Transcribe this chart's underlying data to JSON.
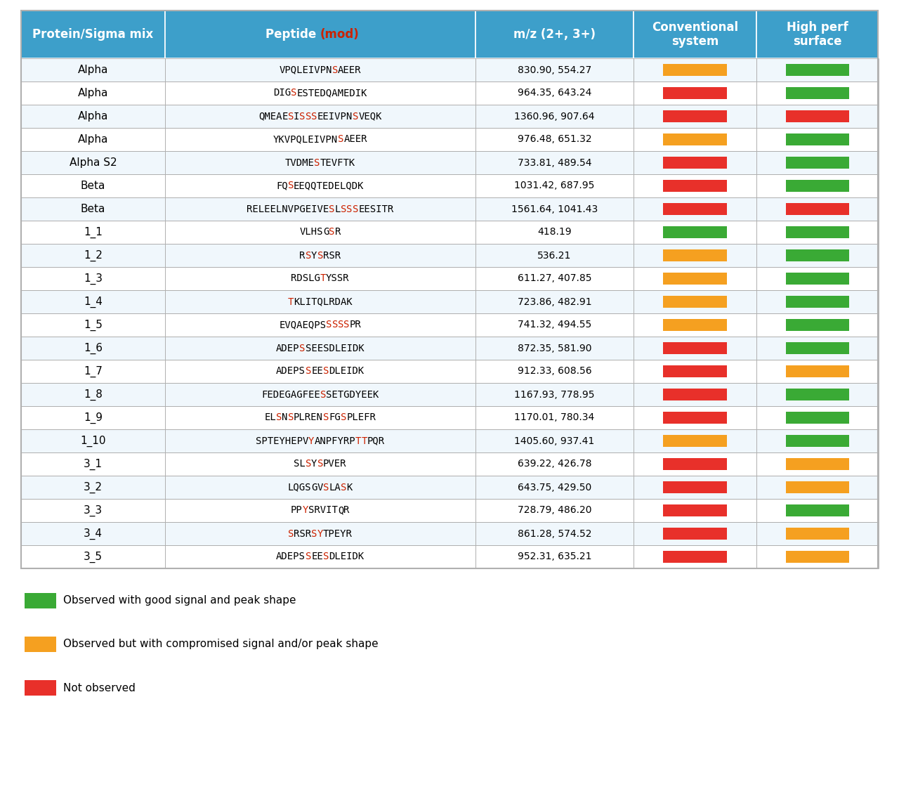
{
  "header": [
    "Protein/Sigma mix",
    "Peptide (mod)",
    "m/z (2+, 3+)",
    "Conventional\nsystem",
    "High perf\nsurface"
  ],
  "header_bg": "#3d9fca",
  "header_text_color": "#ffffff",
  "grid_color": "#b0b0b0",
  "rows": [
    {
      "protein": "Alpha",
      "mz": "830.90, 554.27",
      "conv": "orange",
      "high": "green"
    },
    {
      "protein": "Alpha",
      "mz": "964.35, 643.24",
      "conv": "red",
      "high": "green"
    },
    {
      "protein": "Alpha",
      "mz": "1360.96, 907.64",
      "conv": "red",
      "high": "red"
    },
    {
      "protein": "Alpha",
      "mz": "976.48, 651.32",
      "conv": "orange",
      "high": "green"
    },
    {
      "protein": "Alpha S2",
      "mz": "733.81, 489.54",
      "conv": "red",
      "high": "green"
    },
    {
      "protein": "Beta",
      "mz": "1031.42, 687.95",
      "conv": "red",
      "high": "green"
    },
    {
      "protein": "Beta",
      "mz": "1561.64, 1041.43",
      "conv": "red",
      "high": "red"
    },
    {
      "protein": "1_1",
      "mz": "418.19",
      "conv": "green",
      "high": "green"
    },
    {
      "protein": "1_2",
      "mz": "536.21",
      "conv": "orange",
      "high": "green"
    },
    {
      "protein": "1_3",
      "mz": "611.27, 407.85",
      "conv": "orange",
      "high": "green"
    },
    {
      "protein": "1_4",
      "mz": "723.86, 482.91",
      "conv": "orange",
      "high": "green"
    },
    {
      "protein": "1_5",
      "mz": "741.32, 494.55",
      "conv": "orange",
      "high": "green"
    },
    {
      "protein": "1_6",
      "mz": "872.35, 581.90",
      "conv": "red",
      "high": "green"
    },
    {
      "protein": "1_7",
      "mz": "912.33, 608.56",
      "conv": "red",
      "high": "orange"
    },
    {
      "protein": "1_8",
      "mz": "1167.93, 778.95",
      "conv": "red",
      "high": "green"
    },
    {
      "protein": "1_9",
      "mz": "1170.01, 780.34",
      "conv": "red",
      "high": "green"
    },
    {
      "protein": "1_10",
      "mz": "1405.60, 937.41",
      "conv": "orange",
      "high": "green"
    },
    {
      "protein": "3_1",
      "mz": "639.22, 426.78",
      "conv": "red",
      "high": "orange"
    },
    {
      "protein": "3_2",
      "mz": "643.75, 429.50",
      "conv": "red",
      "high": "orange"
    },
    {
      "protein": "3_3",
      "mz": "728.79, 486.20",
      "conv": "red",
      "high": "green"
    },
    {
      "protein": "3_4",
      "mz": "861.28, 574.52",
      "conv": "red",
      "high": "orange"
    },
    {
      "protein": "3_5",
      "mz": "952.31, 635.21",
      "conv": "red",
      "high": "orange"
    }
  ],
  "color_map": {
    "green": "#3aaa35",
    "orange": "#f5a020",
    "red": "#e8302a"
  },
  "legend": [
    {
      "color": "green",
      "label": "Observed with good signal and peak shape"
    },
    {
      "color": "orange",
      "label": "Observed but with compromised signal and/or peak shape"
    },
    {
      "color": "red",
      "label": "Not observed"
    }
  ]
}
